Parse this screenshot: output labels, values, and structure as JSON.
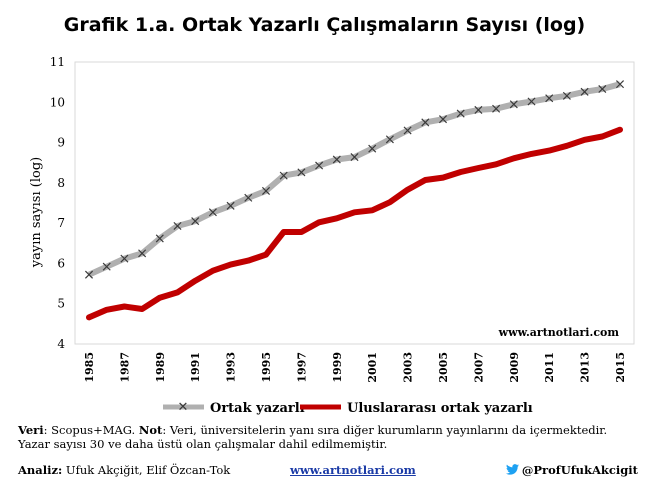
{
  "title": "Grafik 1.a. Ortak Yazarlı Çalışmaların Sayısı (log)",
  "colors": {
    "series1": "#b0b0b0",
    "series1_marker": "#3a3a3a",
    "series2": "#c00000",
    "watermark_link": "#1a3aa6"
  },
  "chart_data": {
    "type": "line",
    "title": "Grafik 1.a. Ortak Yazarlı Çalışmaların Sayısı (log)",
    "ylabel": "yayın sayısı (log)",
    "xlabel": "",
    "ylim": [
      4,
      11
    ],
    "yticks": [
      4,
      5,
      6,
      7,
      8,
      9,
      10,
      11
    ],
    "x": [
      1985,
      1986,
      1987,
      1988,
      1989,
      1990,
      1991,
      1992,
      1993,
      1994,
      1995,
      1996,
      1997,
      1998,
      1999,
      2000,
      2001,
      2002,
      2003,
      2004,
      2005,
      2006,
      2007,
      2008,
      2009,
      2010,
      2011,
      2012,
      2013,
      2014,
      2015
    ],
    "xticks": [
      1985,
      1987,
      1989,
      1991,
      1993,
      1995,
      1997,
      1999,
      2001,
      2003,
      2005,
      2007,
      2009,
      2011,
      2013,
      2015
    ],
    "grid": false,
    "legend_position": "bottom",
    "series": [
      {
        "name": "Ortak yazarlı",
        "marker": "x",
        "values": [
          5.72,
          5.92,
          6.12,
          6.25,
          6.62,
          6.93,
          7.05,
          7.27,
          7.43,
          7.63,
          7.8,
          8.18,
          8.26,
          8.43,
          8.58,
          8.64,
          8.85,
          9.08,
          9.3,
          9.5,
          9.58,
          9.72,
          9.81,
          9.84,
          9.95,
          10.02,
          10.1,
          10.16,
          10.26,
          10.33,
          10.45
        ]
      },
      {
        "name": "Uluslararası ortak yazarlı",
        "marker": "none",
        "values": [
          4.66,
          4.85,
          4.93,
          4.87,
          5.15,
          5.28,
          5.57,
          5.82,
          5.97,
          6.07,
          6.22,
          6.78,
          6.78,
          7.02,
          7.12,
          7.27,
          7.32,
          7.52,
          7.83,
          8.07,
          8.13,
          8.27,
          8.37,
          8.46,
          8.61,
          8.72,
          8.8,
          8.92,
          9.07,
          9.15,
          9.32
        ]
      }
    ],
    "watermark": "www.artnotlari.com"
  },
  "note": {
    "veri_label": "Veri",
    "veri_text": ": Scopus+MAG. ",
    "not_label": "Not",
    "not_text": ": Veri, üniversitelerin yanı sıra diğer kurumların yayınlarını da içermektedir.",
    "line2": "Yazar sayısı 30 ve daha üstü olan çalışmalar dahil edilmemiştir."
  },
  "footer": {
    "analiz_label": "Analiz:",
    "analiz_names": " Ufuk Akçiğit, Elif Özcan-Tok",
    "link": "www.artnotlari.com",
    "twitter_handle": "@ProfUfukAkcigit",
    "twitter_icon": "twitter-bird-icon"
  }
}
